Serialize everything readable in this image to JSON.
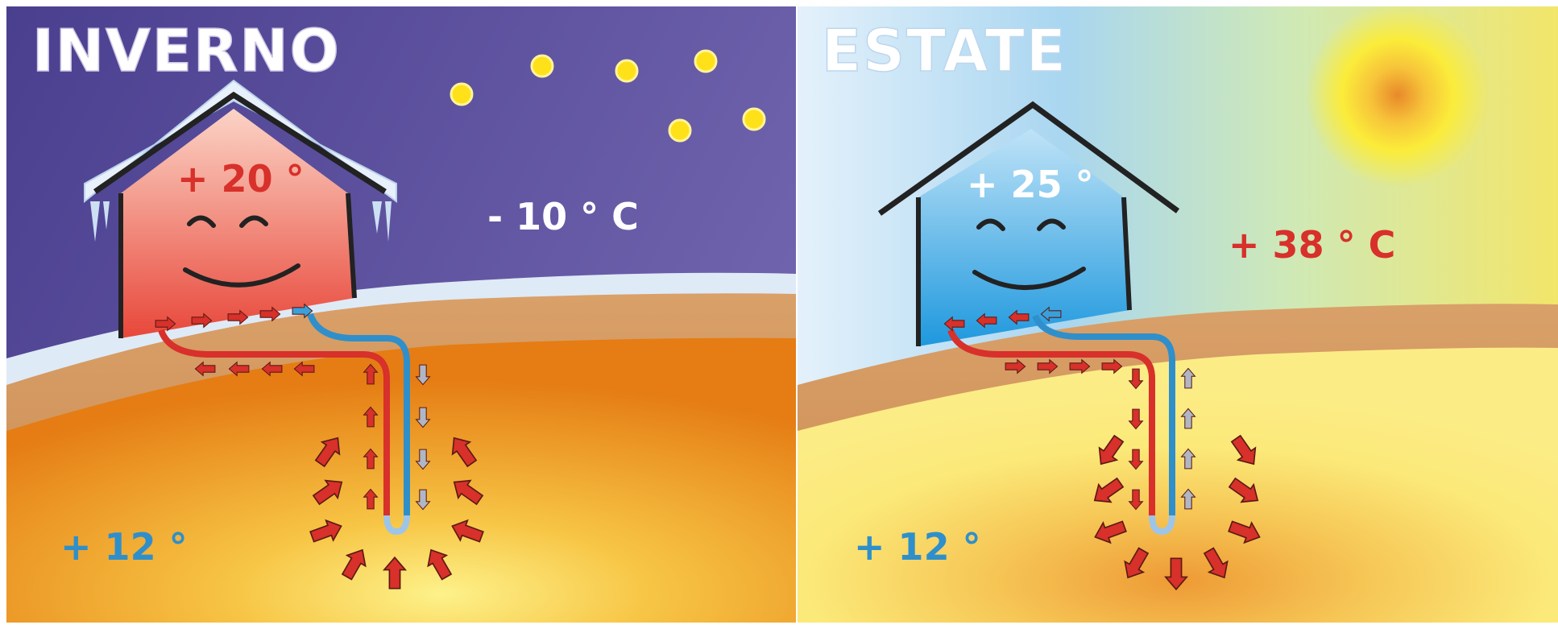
{
  "winter": {
    "title": "INVERNO",
    "inside_temp": "+ 20 °",
    "outside_temp": "- 10 ° C",
    "ground_temp": "+ 12 °"
  },
  "summer": {
    "title": "ESTATE",
    "inside_temp": "+ 25 °",
    "outside_temp": "+ 38 ° C",
    "ground_temp": "+ 12 °"
  },
  "colors": {
    "warm_red": "#d8302a",
    "cool_blue": "#2f8fcb",
    "night_sky": "#5a4c9c",
    "earth_orange": "#e8841c",
    "earth_yellow": "#fbe979"
  }
}
